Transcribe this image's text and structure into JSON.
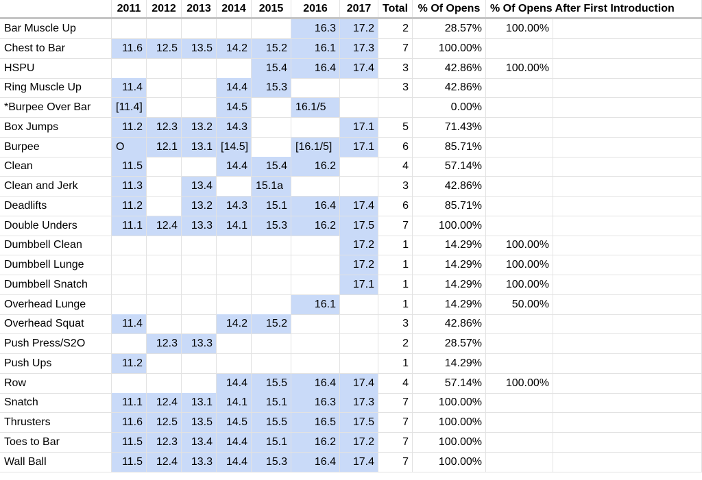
{
  "colors": {
    "highlight": "#c9daf8",
    "grid": "#e2e2e2",
    "header_rule": "#c4c4c4"
  },
  "headers": [
    "",
    "2011",
    "2012",
    "2013",
    "2014",
    "2015",
    "2016",
    "2017",
    "Total",
    "% Of Opens",
    "% Of Opens After First Introduction",
    ""
  ],
  "rows": [
    {
      "name": "Bar Muscle Up",
      "years": [
        "",
        "",
        "",
        "",
        "",
        "16.3",
        "17.2"
      ],
      "total": "2",
      "pct": "28.57%",
      "pct_after": "100.00%"
    },
    {
      "name": "Chest to Bar",
      "years": [
        "11.6",
        "12.5",
        "13.5",
        "14.2",
        "15.2",
        "16.1",
        "17.3"
      ],
      "total": "7",
      "pct": "100.00%",
      "pct_after": ""
    },
    {
      "name": "HSPU",
      "years": [
        "",
        "",
        "",
        "",
        "15.4",
        "16.4",
        "17.4"
      ],
      "total": "3",
      "pct": "42.86%",
      "pct_after": "100.00%"
    },
    {
      "name": "Ring Muscle Up",
      "years": [
        "11.4",
        "",
        "",
        "14.4",
        "15.3",
        "",
        ""
      ],
      "total": "3",
      "pct": "42.86%",
      "pct_after": ""
    },
    {
      "name": "*Burpee Over Bar",
      "years": [
        "[11.4]",
        "",
        "",
        "14.5",
        "",
        "16.1/5",
        ""
      ],
      "total": "",
      "pct": "0.00%",
      "pct_after": ""
    },
    {
      "name": "Box Jumps",
      "years": [
        "11.2",
        "12.3",
        "13.2",
        "14.3",
        "",
        "",
        "17.1"
      ],
      "total": "5",
      "pct": "71.43%",
      "pct_after": ""
    },
    {
      "name": "Burpee",
      "years": [
        "O",
        "12.1",
        "13.1",
        "[14.5]",
        "",
        "[16.1/5]",
        "17.1"
      ],
      "total": "6",
      "pct": "85.71%",
      "pct_after": ""
    },
    {
      "name": "Clean",
      "years": [
        "11.5",
        "",
        "",
        "14.4",
        "15.4",
        "16.2",
        ""
      ],
      "total": "4",
      "pct": "57.14%",
      "pct_after": ""
    },
    {
      "name": "Clean and Jerk",
      "years": [
        "11.3",
        "",
        "13.4",
        "",
        "15.1a",
        "",
        ""
      ],
      "total": "3",
      "pct": "42.86%",
      "pct_after": ""
    },
    {
      "name": "Deadlifts",
      "years": [
        "11.2",
        "",
        "13.2",
        "14.3",
        "15.1",
        "16.4",
        "17.4"
      ],
      "total": "6",
      "pct": "85.71%",
      "pct_after": ""
    },
    {
      "name": "Double Unders",
      "years": [
        "11.1",
        "12.4",
        "13.3",
        "14.1",
        "15.3",
        "16.2",
        "17.5"
      ],
      "total": "7",
      "pct": "100.00%",
      "pct_after": ""
    },
    {
      "name": "Dumbbell Clean",
      "years": [
        "",
        "",
        "",
        "",
        "",
        "",
        "17.2"
      ],
      "total": "1",
      "pct": "14.29%",
      "pct_after": "100.00%"
    },
    {
      "name": "Dumbbell Lunge",
      "years": [
        "",
        "",
        "",
        "",
        "",
        "",
        "17.2"
      ],
      "total": "1",
      "pct": "14.29%",
      "pct_after": "100.00%"
    },
    {
      "name": "Dumbbell Snatch",
      "years": [
        "",
        "",
        "",
        "",
        "",
        "",
        "17.1"
      ],
      "total": "1",
      "pct": "14.29%",
      "pct_after": "100.00%"
    },
    {
      "name": "Overhead Lunge",
      "years": [
        "",
        "",
        "",
        "",
        "",
        "16.1",
        ""
      ],
      "total": "1",
      "pct": "14.29%",
      "pct_after": "50.00%"
    },
    {
      "name": "Overhead Squat",
      "years": [
        "11.4",
        "",
        "",
        "14.2",
        "15.2",
        "",
        ""
      ],
      "total": "3",
      "pct": "42.86%",
      "pct_after": ""
    },
    {
      "name": "Push Press/S2O",
      "years": [
        "",
        "12.3",
        "13.3",
        "",
        "",
        "",
        ""
      ],
      "total": "2",
      "pct": "28.57%",
      "pct_after": ""
    },
    {
      "name": "Push Ups",
      "years": [
        "11.2",
        "",
        "",
        "",
        "",
        "",
        ""
      ],
      "total": "1",
      "pct": "14.29%",
      "pct_after": ""
    },
    {
      "name": "Row",
      "years": [
        "",
        "",
        "",
        "14.4",
        "15.5",
        "16.4",
        "17.4"
      ],
      "total": "4",
      "pct": "57.14%",
      "pct_after": "100.00%"
    },
    {
      "name": "Snatch",
      "years": [
        "11.1",
        "12.4",
        "13.1",
        "14.1",
        "15.1",
        "16.3",
        "17.3"
      ],
      "total": "7",
      "pct": "100.00%",
      "pct_after": ""
    },
    {
      "name": "Thrusters",
      "years": [
        "11.6",
        "12.5",
        "13.5",
        "14.5",
        "15.5",
        "16.5",
        "17.5"
      ],
      "total": "7",
      "pct": "100.00%",
      "pct_after": ""
    },
    {
      "name": "Toes to Bar",
      "years": [
        "11.5",
        "12.3",
        "13.4",
        "14.4",
        "15.1",
        "16.2",
        "17.2"
      ],
      "total": "7",
      "pct": "100.00%",
      "pct_after": ""
    },
    {
      "name": "Wall Ball",
      "years": [
        "11.5",
        "12.4",
        "13.3",
        "14.4",
        "15.3",
        "16.4",
        "17.4"
      ],
      "total": "7",
      "pct": "100.00%",
      "pct_after": ""
    }
  ]
}
